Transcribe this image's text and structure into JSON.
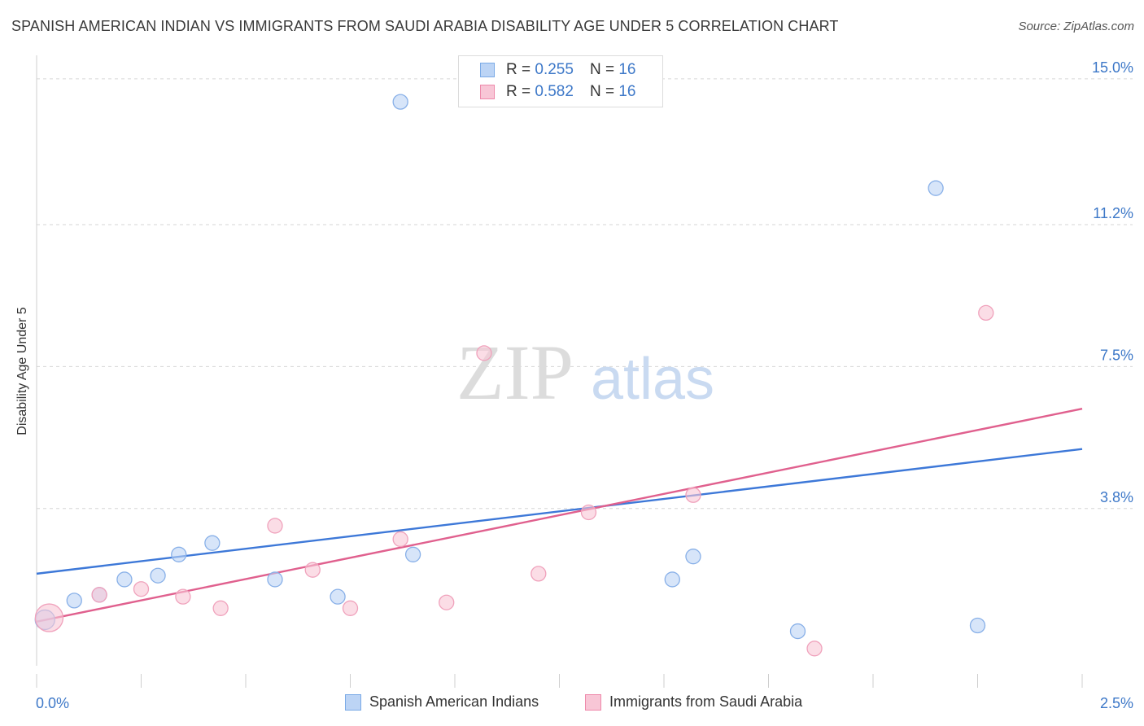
{
  "title": "SPANISH AMERICAN INDIAN VS IMMIGRANTS FROM SAUDI ARABIA DISABILITY AGE UNDER 5 CORRELATION CHART",
  "source": "Source: ZipAtlas.com",
  "watermark": {
    "zip": "ZIP",
    "atlas": "atlas"
  },
  "legend": {
    "r_label": "R =",
    "n_label": "N =",
    "series": [
      {
        "name": "Spanish American Indians",
        "r": "0.255",
        "n": "16",
        "color": "#7aaae6",
        "fill": "#bcd4f5"
      },
      {
        "name": "Immigrants from Saudi Arabia",
        "r": "0.582",
        "n": "16",
        "color": "#ee88aa",
        "fill": "#f8c6d6"
      }
    ]
  },
  "chart_data": {
    "type": "scatter",
    "title": "SPANISH AMERICAN INDIAN VS IMMIGRANTS FROM SAUDI ARABIA DISABILITY AGE UNDER 5 CORRELATION CHART",
    "xlabel": "",
    "ylabel": "Disability Age Under 5",
    "xlim": [
      0.0,
      2.5
    ],
    "ylim": [
      -0.3,
      15.4
    ],
    "x_tick_labels": [
      "0.0%",
      "2.5%"
    ],
    "y_ticks": [
      3.8,
      7.5,
      11.2,
      15.0
    ],
    "y_tick_labels": [
      "3.8%",
      "7.5%",
      "11.2%",
      "15.0%"
    ],
    "grid": true,
    "series": [
      {
        "name": "Spanish American Indians",
        "color": "#3d78d8",
        "points": [
          {
            "x": 0.02,
            "y": 0.9,
            "s": 12
          },
          {
            "x": 0.09,
            "y": 1.4,
            "s": 9
          },
          {
            "x": 0.15,
            "y": 1.55,
            "s": 9
          },
          {
            "x": 0.21,
            "y": 1.95,
            "s": 9
          },
          {
            "x": 0.29,
            "y": 2.05,
            "s": 9
          },
          {
            "x": 0.34,
            "y": 2.6,
            "s": 9
          },
          {
            "x": 0.42,
            "y": 2.9,
            "s": 9
          },
          {
            "x": 0.57,
            "y": 1.95,
            "s": 9
          },
          {
            "x": 0.72,
            "y": 1.5,
            "s": 9
          },
          {
            "x": 0.87,
            "y": 14.4,
            "s": 9
          },
          {
            "x": 0.9,
            "y": 2.6,
            "s": 9
          },
          {
            "x": 1.52,
            "y": 1.95,
            "s": 9
          },
          {
            "x": 1.57,
            "y": 2.55,
            "s": 9
          },
          {
            "x": 1.82,
            "y": 0.6,
            "s": 9
          },
          {
            "x": 2.15,
            "y": 12.15,
            "s": 9
          },
          {
            "x": 2.25,
            "y": 0.75,
            "s": 9
          }
        ],
        "trend": {
          "x": [
            0.0,
            2.5
          ],
          "y": [
            2.1,
            5.35
          ]
        }
      },
      {
        "name": "Immigrants from Saudi Arabia",
        "color": "#e0608e",
        "points": [
          {
            "x": 0.03,
            "y": 0.95,
            "s": 17
          },
          {
            "x": 0.15,
            "y": 1.55,
            "s": 9
          },
          {
            "x": 0.25,
            "y": 1.7,
            "s": 9
          },
          {
            "x": 0.35,
            "y": 1.5,
            "s": 9
          },
          {
            "x": 0.44,
            "y": 1.2,
            "s": 9
          },
          {
            "x": 0.57,
            "y": 3.35,
            "s": 9
          },
          {
            "x": 0.66,
            "y": 2.2,
            "s": 9
          },
          {
            "x": 0.75,
            "y": 1.2,
            "s": 9
          },
          {
            "x": 0.87,
            "y": 3.0,
            "s": 9
          },
          {
            "x": 0.98,
            "y": 1.35,
            "s": 9
          },
          {
            "x": 1.07,
            "y": 7.85,
            "s": 9
          },
          {
            "x": 1.2,
            "y": 2.1,
            "s": 9
          },
          {
            "x": 1.32,
            "y": 3.7,
            "s": 9
          },
          {
            "x": 1.57,
            "y": 4.15,
            "s": 9
          },
          {
            "x": 1.86,
            "y": 0.15,
            "s": 9
          },
          {
            "x": 2.27,
            "y": 8.9,
            "s": 9
          }
        ],
        "trend": {
          "x": [
            0.0,
            2.5
          ],
          "y": [
            0.85,
            6.4
          ]
        }
      }
    ]
  }
}
